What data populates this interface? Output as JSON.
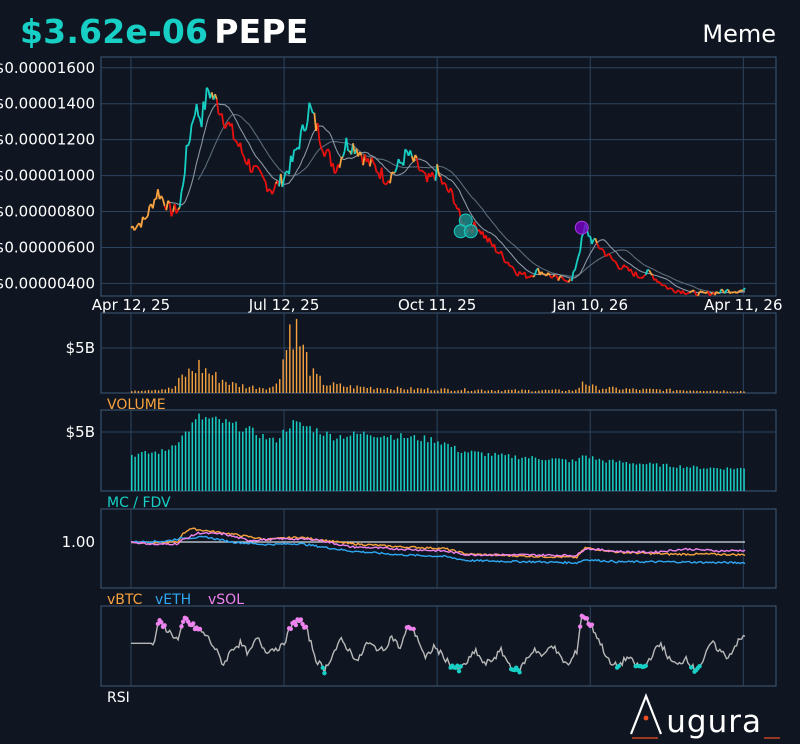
{
  "header": {
    "price": "$3.62e-06",
    "symbol": "PEPE",
    "category": "Meme"
  },
  "colors": {
    "background": "#0f1621",
    "accent": "#17cfc4",
    "up": "#17cfc4",
    "down": "#e8110f",
    "neutral": "#f7a23f",
    "volume": "#f7a23f",
    "mcfdv": "#17cfc4",
    "vbtc": "#f7a23f",
    "veth": "#2fa7f2",
    "vsol": "#ee82ee",
    "rsi": "#b8b8b8",
    "grid": "#2d4460",
    "frame": "#3f5a78"
  },
  "chart_data": [
    {
      "type": "line",
      "panel": "price",
      "x_ticks": [
        "Apr 12, 25",
        "Jul 12, 25",
        "Oct 11, 25",
        "Jan 10, 26",
        "Apr 11, 26"
      ],
      "y_ticks": [
        "$0.00001600",
        "$0.00001400",
        "$0.00001200",
        "$0.00001000",
        "$0.00000800",
        "$0.00000600",
        "$0.00000400"
      ],
      "ylim": [
        3.3e-06,
        1.66e-05
      ],
      "xlim": [
        0,
        365
      ],
      "price_keypoints": [
        [
          0,
          7.1e-06
        ],
        [
          8,
          7.5e-06
        ],
        [
          16,
          9.1e-06
        ],
        [
          24,
          8e-06
        ],
        [
          29,
          8.2e-06
        ],
        [
          33,
          1.12e-05
        ],
        [
          38,
          1.38e-05
        ],
        [
          42,
          1.32e-05
        ],
        [
          46,
          1.48e-05
        ],
        [
          52,
          1.39e-05
        ],
        [
          60,
          1.24e-05
        ],
        [
          66,
          1.13e-05
        ],
        [
          72,
          1.04e-05
        ],
        [
          78,
          9.8e-06
        ],
        [
          84,
          9.2e-06
        ],
        [
          90,
          9.8e-06
        ],
        [
          96,
          1.08e-05
        ],
        [
          102,
          1.24e-05
        ],
        [
          106,
          1.38e-05
        ],
        [
          110,
          1.28e-05
        ],
        [
          116,
          1.13e-05
        ],
        [
          122,
          1.04e-05
        ],
        [
          128,
          1.18e-05
        ],
        [
          134,
          1.16e-05
        ],
        [
          140,
          1.08e-05
        ],
        [
          146,
          1.04e-05
        ],
        [
          152,
          9.8e-06
        ],
        [
          158,
          1.04e-05
        ],
        [
          164,
          1.12e-05
        ],
        [
          170,
          1.06e-05
        ],
        [
          176,
          9.6e-06
        ],
        [
          182,
          1.02e-05
        ],
        [
          186,
          9.4e-06
        ],
        [
          192,
          8.8e-06
        ],
        [
          196,
          7.5e-06
        ],
        [
          200,
          7e-06
        ],
        [
          206,
          7.2e-06
        ],
        [
          212,
          6.4e-06
        ],
        [
          218,
          5.8e-06
        ],
        [
          224,
          5.2e-06
        ],
        [
          230,
          4.6e-06
        ],
        [
          236,
          4.4e-06
        ],
        [
          242,
          4.7e-06
        ],
        [
          248,
          4.5e-06
        ],
        [
          254,
          4.2e-06
        ],
        [
          258,
          4.3e-06
        ],
        [
          262,
          4.1e-06
        ],
        [
          266,
          5.6e-06
        ],
        [
          270,
          7.1e-06
        ],
        [
          274,
          6.4e-06
        ],
        [
          278,
          6.1e-06
        ],
        [
          284,
          5.5e-06
        ],
        [
          290,
          5e-06
        ],
        [
          296,
          4.7e-06
        ],
        [
          302,
          4.4e-06
        ],
        [
          308,
          4.6e-06
        ],
        [
          314,
          4.1e-06
        ],
        [
          320,
          3.7e-06
        ],
        [
          326,
          3.6e-06
        ],
        [
          332,
          3.5e-06
        ],
        [
          340,
          3.4e-06
        ],
        [
          348,
          3.5e-06
        ],
        [
          356,
          3.6e-06
        ],
        [
          365,
          3.6e-06
        ]
      ],
      "markers": [
        {
          "x": 199,
          "y": 7.5e-06,
          "kind": "teal"
        },
        {
          "x": 196,
          "y": 6.9e-06,
          "kind": "teal"
        },
        {
          "x": 202,
          "y": 6.9e-06,
          "kind": "teal"
        },
        {
          "x": 268,
          "y": 7.1e-06,
          "kind": "purple"
        }
      ]
    },
    {
      "type": "bar",
      "panel": "volume",
      "label": "VOLUME",
      "y_ticks": [
        "$5B"
      ],
      "series_keypoints": [
        [
          0,
          0.03
        ],
        [
          25,
          0.05
        ],
        [
          30,
          0.18
        ],
        [
          40,
          0.3
        ],
        [
          50,
          0.18
        ],
        [
          60,
          0.1
        ],
        [
          70,
          0.07
        ],
        [
          85,
          0.06
        ],
        [
          92,
          0.5
        ],
        [
          95,
          0.85
        ],
        [
          100,
          0.55
        ],
        [
          108,
          0.2
        ],
        [
          115,
          0.1
        ],
        [
          130,
          0.07
        ],
        [
          160,
          0.05
        ],
        [
          190,
          0.04
        ],
        [
          230,
          0.03
        ],
        [
          265,
          0.03
        ],
        [
          268,
          0.14
        ],
        [
          275,
          0.06
        ],
        [
          300,
          0.04
        ],
        [
          340,
          0.03
        ],
        [
          365,
          0.02
        ]
      ]
    },
    {
      "type": "bar",
      "panel": "mcfdv",
      "label": "MC / FDV",
      "y_ticks": [
        "$5B"
      ],
      "series_keypoints": [
        [
          0,
          0.45
        ],
        [
          20,
          0.5
        ],
        [
          30,
          0.68
        ],
        [
          40,
          0.92
        ],
        [
          55,
          0.86
        ],
        [
          70,
          0.76
        ],
        [
          85,
          0.62
        ],
        [
          95,
          0.85
        ],
        [
          105,
          0.8
        ],
        [
          120,
          0.68
        ],
        [
          140,
          0.72
        ],
        [
          160,
          0.68
        ],
        [
          180,
          0.64
        ],
        [
          186,
          0.6
        ],
        [
          195,
          0.5
        ],
        [
          220,
          0.44
        ],
        [
          250,
          0.4
        ],
        [
          265,
          0.37
        ],
        [
          268,
          0.45
        ],
        [
          280,
          0.38
        ],
        [
          310,
          0.33
        ],
        [
          340,
          0.29
        ],
        [
          365,
          0.28
        ]
      ]
    },
    {
      "type": "line",
      "panel": "relative",
      "y_ticks": [
        "1.00"
      ],
      "legend": [
        "vBTC",
        "vETH",
        "vSOL"
      ],
      "series": [
        {
          "name": "vBTC",
          "keypoints": [
            [
              0,
              1.0
            ],
            [
              15,
              0.97
            ],
            [
              28,
              1.0
            ],
            [
              30,
              1.22
            ],
            [
              35,
              1.42
            ],
            [
              45,
              1.35
            ],
            [
              60,
              1.25
            ],
            [
              80,
              1.08
            ],
            [
              100,
              1.15
            ],
            [
              130,
              0.95
            ],
            [
              160,
              0.85
            ],
            [
              186,
              0.8
            ],
            [
              200,
              0.62
            ],
            [
              240,
              0.55
            ],
            [
              265,
              0.52
            ],
            [
              270,
              0.82
            ],
            [
              290,
              0.68
            ],
            [
              320,
              0.62
            ],
            [
              345,
              0.62
            ],
            [
              365,
              0.6
            ]
          ]
        },
        {
          "name": "vETH",
          "keypoints": [
            [
              0,
              1.0
            ],
            [
              20,
              1.02
            ],
            [
              30,
              1.12
            ],
            [
              45,
              1.15
            ],
            [
              60,
              1.0
            ],
            [
              80,
              0.92
            ],
            [
              100,
              0.95
            ],
            [
              130,
              0.72
            ],
            [
              160,
              0.6
            ],
            [
              186,
              0.55
            ],
            [
              200,
              0.42
            ],
            [
              240,
              0.38
            ],
            [
              265,
              0.35
            ],
            [
              270,
              0.45
            ],
            [
              290,
              0.38
            ],
            [
              320,
              0.38
            ],
            [
              345,
              0.36
            ],
            [
              365,
              0.35
            ]
          ]
        },
        {
          "name": "vSOL",
          "keypoints": [
            [
              0,
              1.0
            ],
            [
              15,
              0.92
            ],
            [
              28,
              0.95
            ],
            [
              30,
              1.05
            ],
            [
              40,
              1.28
            ],
            [
              55,
              1.25
            ],
            [
              70,
              1.05
            ],
            [
              90,
              1.1
            ],
            [
              110,
              1.08
            ],
            [
              130,
              0.85
            ],
            [
              160,
              0.78
            ],
            [
              186,
              0.72
            ],
            [
              200,
              0.6
            ],
            [
              230,
              0.6
            ],
            [
              265,
              0.58
            ],
            [
              270,
              0.8
            ],
            [
              290,
              0.7
            ],
            [
              310,
              0.68
            ],
            [
              330,
              0.78
            ],
            [
              350,
              0.72
            ],
            [
              365,
              0.74
            ]
          ]
        }
      ]
    },
    {
      "type": "line",
      "panel": "rsi",
      "label": "RSI",
      "series_keypoints": [
        [
          0,
          55
        ],
        [
          10,
          55
        ],
        [
          14,
          55
        ],
        [
          16,
          75
        ],
        [
          20,
          70
        ],
        [
          28,
          58
        ],
        [
          32,
          78
        ],
        [
          36,
          72
        ],
        [
          40,
          68
        ],
        [
          45,
          62
        ],
        [
          50,
          50
        ],
        [
          55,
          35
        ],
        [
          60,
          50
        ],
        [
          65,
          55
        ],
        [
          70,
          45
        ],
        [
          75,
          60
        ],
        [
          80,
          48
        ],
        [
          90,
          52
        ],
        [
          95,
          70
        ],
        [
          100,
          78
        ],
        [
          105,
          65
        ],
        [
          110,
          40
        ],
        [
          115,
          30
        ],
        [
          120,
          45
        ],
        [
          125,
          58
        ],
        [
          130,
          48
        ],
        [
          135,
          38
        ],
        [
          140,
          55
        ],
        [
          150,
          48
        ],
        [
          155,
          62
        ],
        [
          160,
          50
        ],
        [
          165,
          72
        ],
        [
          170,
          62
        ],
        [
          175,
          40
        ],
        [
          180,
          52
        ],
        [
          185,
          44
        ],
        [
          190,
          35
        ],
        [
          195,
          30
        ],
        [
          200,
          38
        ],
        [
          205,
          48
        ],
        [
          210,
          35
        ],
        [
          215,
          40
        ],
        [
          220,
          48
        ],
        [
          225,
          35
        ],
        [
          230,
          28
        ],
        [
          235,
          40
        ],
        [
          240,
          50
        ],
        [
          245,
          42
        ],
        [
          250,
          55
        ],
        [
          255,
          42
        ],
        [
          260,
          34
        ],
        [
          265,
          48
        ],
        [
          268,
          82
        ],
        [
          272,
          75
        ],
        [
          276,
          65
        ],
        [
          280,
          52
        ],
        [
          285,
          35
        ],
        [
          290,
          34
        ],
        [
          295,
          42
        ],
        [
          300,
          35
        ],
        [
          305,
          32
        ],
        [
          310,
          45
        ],
        [
          315,
          55
        ],
        [
          320,
          40
        ],
        [
          325,
          34
        ],
        [
          330,
          42
        ],
        [
          335,
          30
        ],
        [
          340,
          38
        ],
        [
          345,
          56
        ],
        [
          350,
          48
        ],
        [
          355,
          42
        ],
        [
          360,
          55
        ],
        [
          365,
          62
        ]
      ]
    }
  ],
  "watermark": {
    "brand": "ugura"
  }
}
